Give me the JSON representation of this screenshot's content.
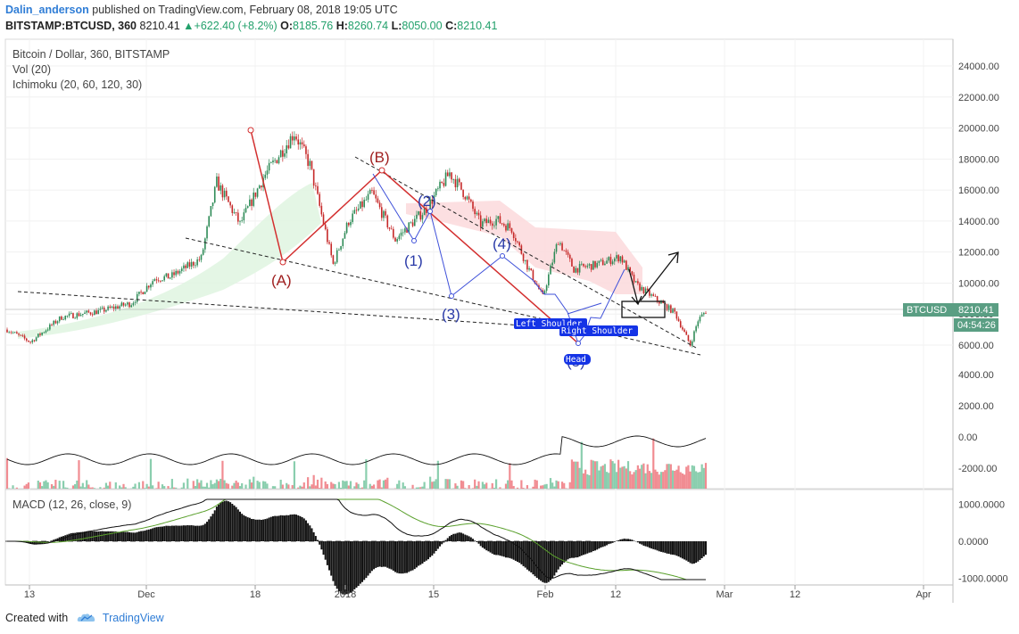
{
  "header": {
    "author": "Dalin_anderson",
    "published_text": "published on TradingView.com, February 08, 2018 19:05 UTC",
    "symbol": "BITSTAMP:BTCUSD, 360",
    "last": "8210.41",
    "arrow": "▲",
    "change": "+622.40 (+8.2%)",
    "o_label": "O:",
    "o_val": "8185.76",
    "h_label": "H:",
    "h_val": "8260.74",
    "l_label": "L:",
    "l_val": "8050.00",
    "c_label": "C:",
    "c_val": "8210.41"
  },
  "legend": {
    "title": "Bitcoin / Dollar, 360, BITSTAMP",
    "vol": "Vol (20)",
    "ichimoku": "Ichimoku (20, 60, 120, 30)",
    "macd": "MACD (12, 26, close, 9)"
  },
  "price_badge": {
    "symbol": "BTCUSD",
    "price": "8210.41",
    "countdown": "04:54:26"
  },
  "annotations": {
    "A": "(A)",
    "B": "(B)",
    "w1": "(1)",
    "w2": "(2)",
    "w3": "(3)",
    "w4": "(4)",
    "w5": "(5)",
    "left_shoulder": "Left Shoulder",
    "right_shoulder": "Right Shoulder",
    "head": "Head"
  },
  "footer": {
    "created_with": "Created with",
    "brand": "TradingView"
  },
  "colors": {
    "up": "#26a69a",
    "down": "#ef5350",
    "wave_red": "#d32f2f",
    "wave_blue": "#3f51d9",
    "accent": "#2f7dd6"
  },
  "chart_data": {
    "type": "candlestick",
    "price_axis": {
      "ticks": [
        6000,
        8000,
        10000,
        12000,
        14000,
        16000,
        18000,
        20000,
        22000,
        24000
      ],
      "labels": [
        "6000.00",
        "8000.00",
        "10000.00",
        "12000.00",
        "14000.00",
        "16000.00",
        "18000.00",
        "20000.00",
        "22000.00",
        "24000.00"
      ]
    },
    "volume_axis": {
      "ticks": [
        -2000,
        0,
        2000,
        4000
      ],
      "labels": [
        "-2000.00",
        "0.00",
        "2000.00",
        "4000.00"
      ]
    },
    "macd_axis": {
      "ticks": [
        -1000,
        0,
        1000
      ],
      "labels": [
        "-1000.0000",
        "0.0000",
        "1000.0000"
      ]
    },
    "x_ticks": [
      "13",
      "Dec",
      "18",
      "2018",
      "15",
      "Feb",
      "12",
      "Mar",
      "12",
      "Apr"
    ],
    "price_path": [
      {
        "d": "2017-11-10",
        "p": 7000
      },
      {
        "d": "2017-11-13",
        "p": 6200
      },
      {
        "d": "2017-11-17",
        "p": 7800
      },
      {
        "d": "2017-11-22",
        "p": 8200
      },
      {
        "d": "2017-11-26",
        "p": 8700
      },
      {
        "d": "2017-11-29",
        "p": 10300
      },
      {
        "d": "2017-12-01",
        "p": 10400
      },
      {
        "d": "2017-12-05",
        "p": 11600
      },
      {
        "d": "2017-12-07",
        "p": 16500
      },
      {
        "d": "2017-12-10",
        "p": 13800
      },
      {
        "d": "2017-12-13",
        "p": 16800
      },
      {
        "d": "2017-12-17",
        "p": 19700
      },
      {
        "d": "2017-12-19",
        "p": 17600
      },
      {
        "d": "2017-12-22",
        "p": 11200
      },
      {
        "d": "2017-12-24",
        "p": 14000
      },
      {
        "d": "2017-12-27",
        "p": 15800
      },
      {
        "d": "2017-12-30",
        "p": 12800
      },
      {
        "d": "2018-01-03",
        "p": 14800
      },
      {
        "d": "2018-01-06",
        "p": 17100
      },
      {
        "d": "2018-01-08",
        "p": 15700
      },
      {
        "d": "2018-01-10",
        "p": 13800
      },
      {
        "d": "2018-01-12",
        "p": 14100
      },
      {
        "d": "2018-01-14",
        "p": 13500
      },
      {
        "d": "2018-01-16",
        "p": 11100
      },
      {
        "d": "2018-01-18",
        "p": 9100
      },
      {
        "d": "2018-01-20",
        "p": 12800
      },
      {
        "d": "2018-01-22",
        "p": 10900
      },
      {
        "d": "2018-01-25",
        "p": 11200
      },
      {
        "d": "2018-01-28",
        "p": 11700
      },
      {
        "d": "2018-01-30",
        "p": 9900
      },
      {
        "d": "2018-02-02",
        "p": 8800
      },
      {
        "d": "2018-02-04",
        "p": 8100
      },
      {
        "d": "2018-02-06",
        "p": 6000
      },
      {
        "d": "2018-02-07",
        "p": 7600
      },
      {
        "d": "2018-02-08",
        "p": 8210
      }
    ],
    "last_price": 8210.41
  }
}
